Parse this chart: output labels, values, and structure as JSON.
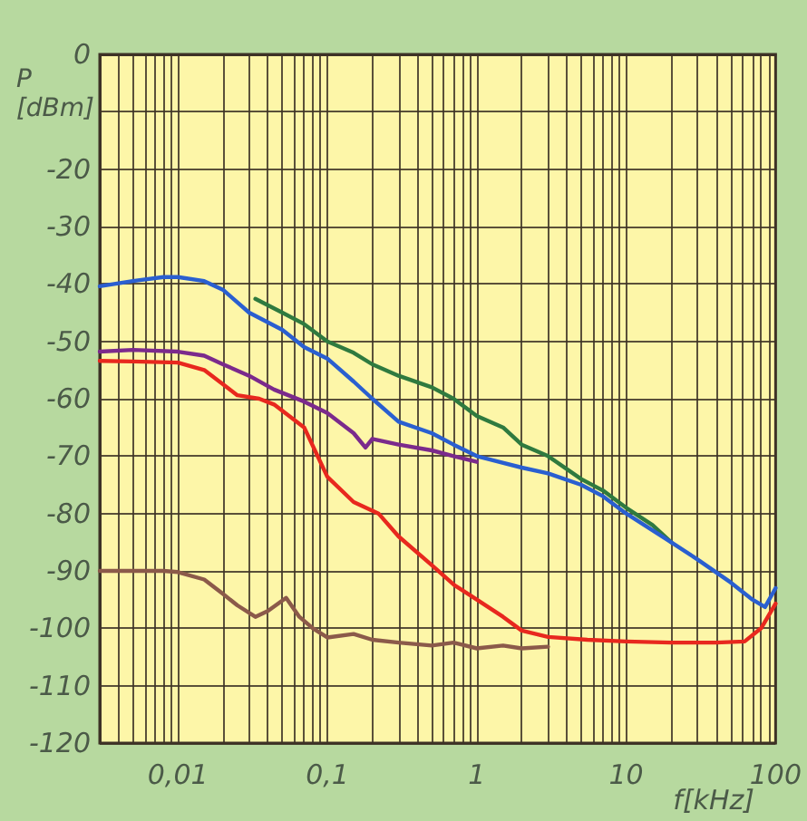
{
  "chart_data": {
    "type": "line",
    "ylabel": "P [dBm]",
    "xlabel": "f[kHz]",
    "log": "x",
    "grid": true,
    "marker": "none",
    "line_style": "solid",
    "xlim": [
      0.003,
      100
    ],
    "ylim": [
      -120,
      0
    ],
    "xticks": [
      {
        "value": 0.004,
        "label": null
      },
      {
        "value": 0.005,
        "label": null
      },
      {
        "value": 0.006,
        "label": null
      },
      {
        "value": 0.007,
        "label": null
      },
      {
        "value": 0.008,
        "label": null
      },
      {
        "value": 0.009,
        "label": null
      },
      {
        "value": 0.01,
        "label": "0,01"
      },
      {
        "value": 0.02,
        "label": null
      },
      {
        "value": 0.03,
        "label": null
      },
      {
        "value": 0.04,
        "label": null
      },
      {
        "value": 0.05,
        "label": null
      },
      {
        "value": 0.06,
        "label": null
      },
      {
        "value": 0.07,
        "label": null
      },
      {
        "value": 0.08,
        "label": null
      },
      {
        "value": 0.09,
        "label": null
      },
      {
        "value": 0.1,
        "label": "0,1"
      },
      {
        "value": 0.2,
        "label": null
      },
      {
        "value": 0.3,
        "label": null
      },
      {
        "value": 0.4,
        "label": null
      },
      {
        "value": 0.5,
        "label": null
      },
      {
        "value": 0.6,
        "label": null
      },
      {
        "value": 0.7,
        "label": null
      },
      {
        "value": 0.8,
        "label": null
      },
      {
        "value": 0.9,
        "label": null
      },
      {
        "value": 1,
        "label": "1"
      },
      {
        "value": 2,
        "label": null
      },
      {
        "value": 3,
        "label": null
      },
      {
        "value": 4,
        "label": null
      },
      {
        "value": 5,
        "label": null
      },
      {
        "value": 6,
        "label": null
      },
      {
        "value": 7,
        "label": null
      },
      {
        "value": 8,
        "label": null
      },
      {
        "value": 9,
        "label": null
      },
      {
        "value": 10,
        "label": "10"
      },
      {
        "value": 20,
        "label": null
      },
      {
        "value": 30,
        "label": null
      },
      {
        "value": 40,
        "label": null
      },
      {
        "value": 50,
        "label": null
      },
      {
        "value": 60,
        "label": null
      },
      {
        "value": 70,
        "label": null
      },
      {
        "value": 80,
        "label": null
      },
      {
        "value": 90,
        "label": null
      },
      {
        "value": 100,
        "label": "100"
      }
    ],
    "yticks": [
      0,
      {
        "value": -10,
        "label": null
      },
      -20,
      -30,
      -40,
      -50,
      -60,
      -70,
      -80,
      -90,
      -100,
      -110,
      -120
    ],
    "series": [
      {
        "color": "#2f7a3f",
        "x": [
          0.033,
          0.05,
          0.07,
          0.1,
          0.15,
          0.2,
          0.3,
          0.5,
          0.7,
          1,
          1.5,
          2,
          3,
          5,
          7,
          10,
          15,
          20
        ],
        "values": [
          -42.6,
          -45,
          -47,
          -50,
          -52,
          -54,
          -56,
          -58,
          -60,
          -63,
          -65,
          -68,
          -70,
          -74,
          -76,
          -79,
          -82,
          -85
        ]
      },
      {
        "color": "#2a5fd0",
        "x": [
          0.003,
          0.005,
          0.008,
          0.01,
          0.015,
          0.02,
          0.03,
          0.05,
          0.07,
          0.1,
          0.15,
          0.2,
          0.3,
          0.5,
          0.7,
          1,
          2,
          3,
          5,
          7,
          10,
          20,
          30,
          50,
          70,
          85,
          100
        ],
        "values": [
          -40.4,
          -39.5,
          -38.8,
          -38.8,
          -39.5,
          -41,
          -45,
          -48,
          -51,
          -53,
          -57,
          -60,
          -64,
          -66,
          -68,
          -70,
          -72,
          -73,
          -75,
          -77,
          -80,
          -85,
          -88,
          -92,
          -95,
          -96.3,
          -93
        ]
      },
      {
        "color": "#7b2a8c",
        "x": [
          0.003,
          0.005,
          0.01,
          0.015,
          0.02,
          0.03,
          0.044,
          0.07,
          0.1,
          0.15,
          0.18,
          0.2,
          0.3,
          0.5,
          0.7,
          1
        ],
        "values": [
          -51.8,
          -51.5,
          -51.8,
          -52.5,
          -54,
          -56,
          -58.4,
          -60.5,
          -62.5,
          -66,
          -68.5,
          -67,
          -68,
          -69,
          -70,
          -71
        ]
      },
      {
        "color": "#e8281e",
        "x": [
          0.003,
          0.005,
          0.01,
          0.015,
          0.025,
          0.035,
          0.044,
          0.07,
          0.1,
          0.15,
          0.22,
          0.3,
          0.5,
          0.71,
          1,
          1.5,
          2,
          3,
          5.5,
          10,
          20,
          40,
          62,
          80,
          100
        ],
        "values": [
          -53.4,
          -53.5,
          -53.7,
          -55,
          -59.4,
          -60,
          -61,
          -65,
          -73.6,
          -78,
          -80,
          -84,
          -89,
          -92.5,
          -95,
          -98,
          -100.4,
          -101.5,
          -102,
          -102.3,
          -102.5,
          -102.5,
          -102.3,
          -100,
          -95.7
        ]
      },
      {
        "color": "#8b5a4a",
        "x": [
          0.003,
          0.005,
          0.008,
          0.01,
          0.015,
          0.02,
          0.025,
          0.033,
          0.04,
          0.053,
          0.065,
          0.08,
          0.1,
          0.15,
          0.2,
          0.3,
          0.5,
          0.7,
          1,
          1.5,
          2,
          3
        ],
        "values": [
          -90,
          -90,
          -90,
          -90.2,
          -91.5,
          -94,
          -96,
          -98,
          -97,
          -94.7,
          -98,
          -100,
          -101.6,
          -101,
          -102,
          -102.5,
          -103,
          -102.5,
          -103.5,
          -103,
          -103.5,
          -103.2
        ]
      }
    ]
  }
}
